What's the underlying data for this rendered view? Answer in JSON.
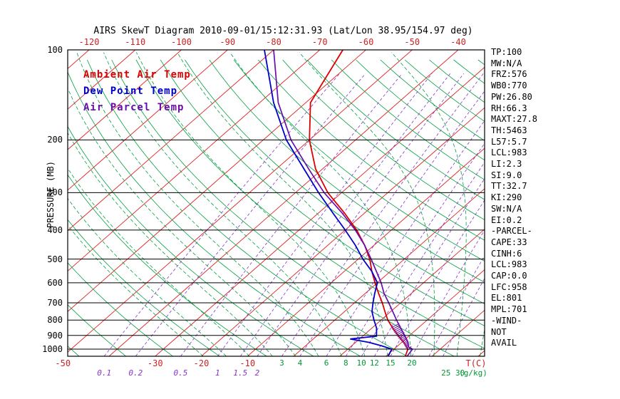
{
  "title": "AIRS SkewT Diagram 2010-09-01/15:12:31.93 (Lat/Lon 38.95/154.97 deg)",
  "colors": {
    "ambient": "#dd0000",
    "dew": "#0000cc",
    "parcel": "#6a0dad",
    "isotherm": "#e02020",
    "adiabat": "#00a040",
    "mixing": "#8833cc",
    "axis": "#000000"
  },
  "legend": [
    {
      "label": "Ambient Air Temp",
      "color": "#dd0000"
    },
    {
      "label": "Dew Point Temp",
      "color": "#0000cc"
    },
    {
      "label": "Air Parcel Temp",
      "color": "#6a0dad"
    }
  ],
  "axes": {
    "pressure_label": "PRESSURE (MB)",
    "pressure_ticks": [
      100,
      200,
      300,
      400,
      500,
      600,
      700,
      800,
      900,
      1000
    ],
    "top_temp_ticks": [
      -120,
      -110,
      -100,
      -90,
      -80,
      -70,
      -60,
      -50,
      -40
    ],
    "bottom_temp_ticks": [
      -50,
      -30,
      -20,
      -10
    ],
    "temp_unit": "T(C)",
    "mixing_unit": "(g/kg)",
    "mixing_purple": [
      0.1,
      0.2,
      0.5,
      1,
      1.5,
      2
    ],
    "mixing_green_upper": [
      3,
      4,
      6,
      8,
      10,
      12,
      15,
      20
    ],
    "mixing_green_lower": [
      25,
      30
    ]
  },
  "stats": [
    "TP:100",
    "MW:N/A",
    "FRZ:576",
    "WB0:770",
    "PW:26.80",
    "RH:66.3",
    "MAXT:27.8",
    "TH:5463",
    "L57:5.7",
    "LCL:983",
    "LI:2.3",
    "SI:9.0",
    "TT:32.7",
    "KI:290",
    "SW:N/A",
    "EI:0.2",
    "-PARCEL-",
    "CAPE:33",
    "CINH:6",
    "LCL:983",
    "CAP:0.0",
    "LFC:958",
    "EL:801",
    "MPL:701",
    "-WIND-",
    "NOT",
    "AVAIL"
  ],
  "chart_data": {
    "type": "line",
    "variant": "skewt-logp",
    "pressure_range_mb": [
      100,
      1056
    ],
    "top_axis_temp_range_c": [
      -120,
      -40
    ],
    "isotherms": {
      "start": -120,
      "end": 40,
      "step": 10
    },
    "dry_adiabats": {
      "start": -50,
      "end": 190,
      "step": 10
    },
    "moist_adiabats": {
      "start": -20,
      "end": 40,
      "step": 5
    },
    "mixing_ratios_gkg": [
      0.1,
      0.2,
      0.5,
      1,
      1.5,
      2,
      3,
      4,
      6,
      8,
      10,
      12,
      15,
      20,
      25,
      30
    ],
    "series": [
      {
        "name": "Ambient Air Temp",
        "color": "#dd0000",
        "points": [
          [
            1056,
            24.2
          ],
          [
            1000,
            23
          ],
          [
            950,
            20.5
          ],
          [
            925,
            19
          ],
          [
            900,
            17.5
          ],
          [
            850,
            14.5
          ],
          [
            800,
            11.5
          ],
          [
            750,
            8.8
          ],
          [
            700,
            6
          ],
          [
            650,
            2.8
          ],
          [
            600,
            -0.5
          ],
          [
            550,
            -4
          ],
          [
            500,
            -7.5
          ],
          [
            450,
            -12
          ],
          [
            400,
            -17.5
          ],
          [
            350,
            -24.5
          ],
          [
            300,
            -33
          ],
          [
            250,
            -41.5
          ],
          [
            200,
            -50
          ],
          [
            150,
            -59
          ],
          [
            100,
            -65
          ]
        ]
      },
      {
        "name": "Dew Point Temp",
        "color": "#0000cc",
        "points": [
          [
            1056,
            20.5
          ],
          [
            1000,
            19.5
          ],
          [
            975,
            16.5
          ],
          [
            950,
            13
          ],
          [
            925,
            8
          ],
          [
            905,
            13
          ],
          [
            850,
            11
          ],
          [
            800,
            8.5
          ],
          [
            750,
            6
          ],
          [
            700,
            4
          ],
          [
            650,
            2
          ],
          [
            600,
            0
          ],
          [
            550,
            -4
          ],
          [
            500,
            -9
          ],
          [
            450,
            -14
          ],
          [
            400,
            -20
          ],
          [
            350,
            -27
          ],
          [
            300,
            -35
          ],
          [
            250,
            -44
          ],
          [
            200,
            -55
          ],
          [
            150,
            -67
          ],
          [
            100,
            -82
          ]
        ]
      },
      {
        "name": "Air Parcel Temp",
        "color": "#6a0dad",
        "points": [
          [
            1056,
            24.6
          ],
          [
            1000,
            24
          ],
          [
            983,
            22.6
          ],
          [
            950,
            21.4
          ],
          [
            900,
            18.9
          ],
          [
            850,
            16.2
          ],
          [
            800,
            13.4
          ],
          [
            750,
            10.5
          ],
          [
            700,
            7.4
          ],
          [
            650,
            4
          ],
          [
            600,
            0.8
          ],
          [
            550,
            -3
          ],
          [
            500,
            -7.2
          ],
          [
            450,
            -12
          ],
          [
            400,
            -17.8
          ],
          [
            350,
            -25
          ],
          [
            300,
            -33.8
          ],
          [
            250,
            -43
          ],
          [
            200,
            -54
          ],
          [
            150,
            -66
          ],
          [
            100,
            -80
          ]
        ]
      }
    ],
    "cape_hatch_pressure_range": [
      995,
      835
    ]
  }
}
